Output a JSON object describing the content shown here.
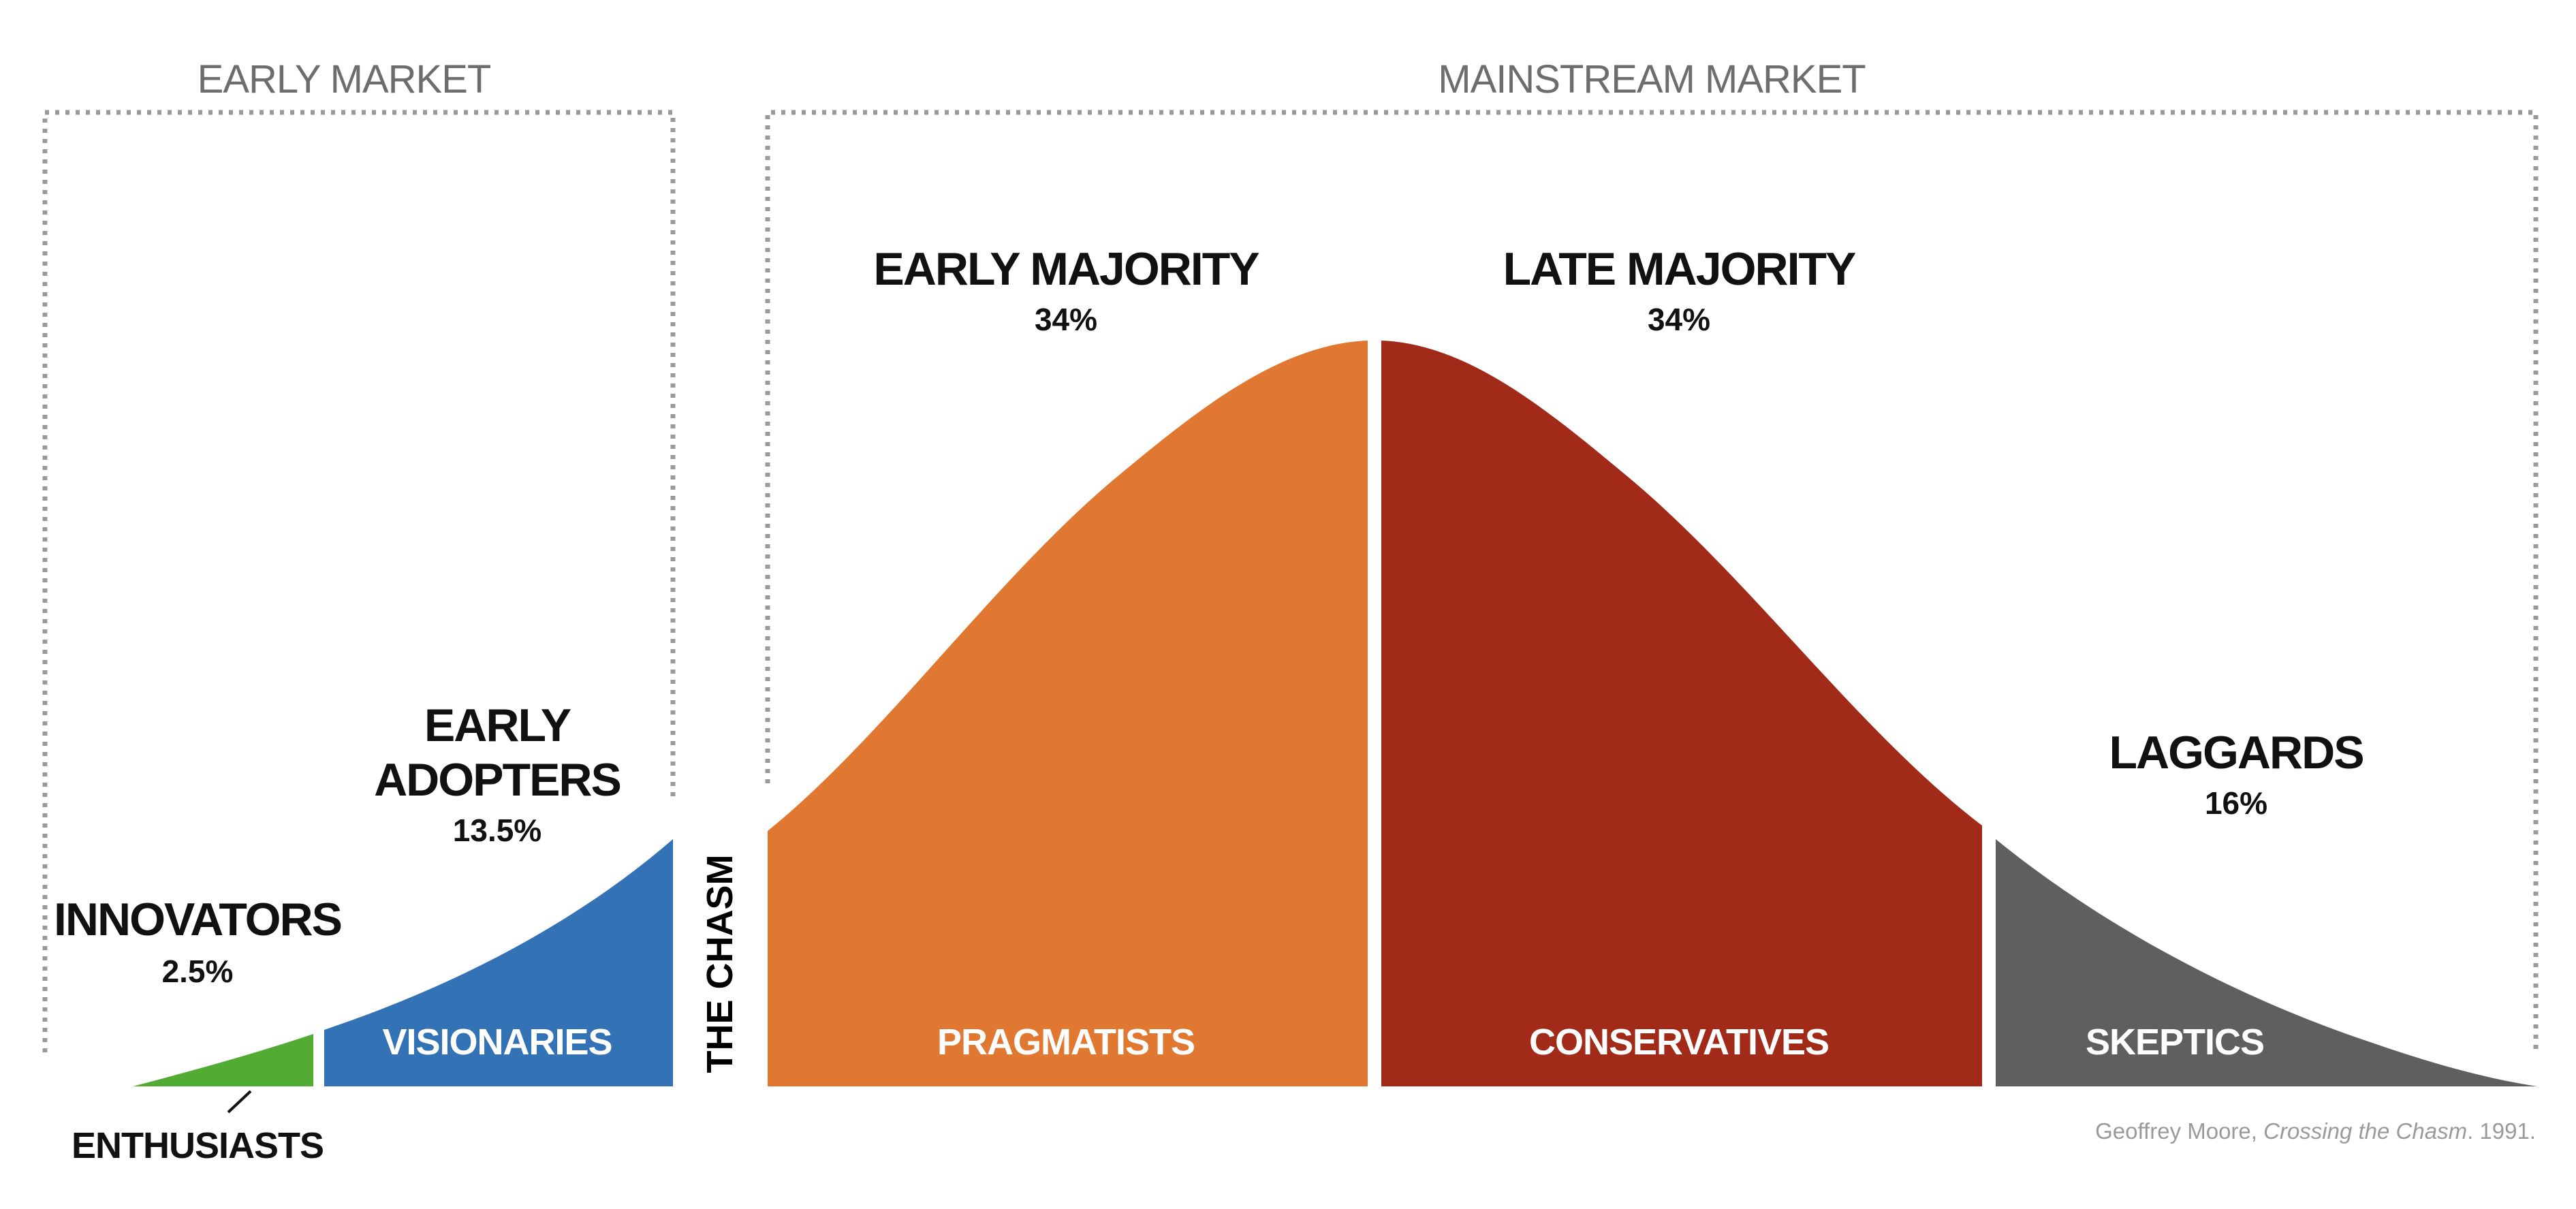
{
  "sections": {
    "early_market": "EARLY MARKET",
    "mainstream_market": "MAINSTREAM MARKET"
  },
  "segments": {
    "innovators": {
      "label": "INNOVATORS",
      "percent": "2.5%",
      "persona": "ENTHUSIASTS",
      "color": "#52ac34"
    },
    "early_adopters": {
      "label_line1": "EARLY",
      "label_line2": "ADOPTERS",
      "percent": "13.5%",
      "persona": "VISIONARIES",
      "color": "#3372b5"
    },
    "early_majority": {
      "label": "EARLY MAJORITY",
      "percent": "34%",
      "persona": "PRAGMATISTS",
      "color": "#e07831"
    },
    "late_majority": {
      "label": "LATE MAJORITY",
      "percent": "34%",
      "persona": "CONSERVATIVES",
      "color": "#a22a18"
    },
    "laggards": {
      "label": "LAGGARDS",
      "percent": "16%",
      "persona": "SKEPTICS",
      "color": "#5f5f5f"
    }
  },
  "chasm_label": "THE CHASM",
  "credit": {
    "author": "Geoffrey Moore, ",
    "title": "Crossing the Chasm",
    "year": ". 1991."
  }
}
